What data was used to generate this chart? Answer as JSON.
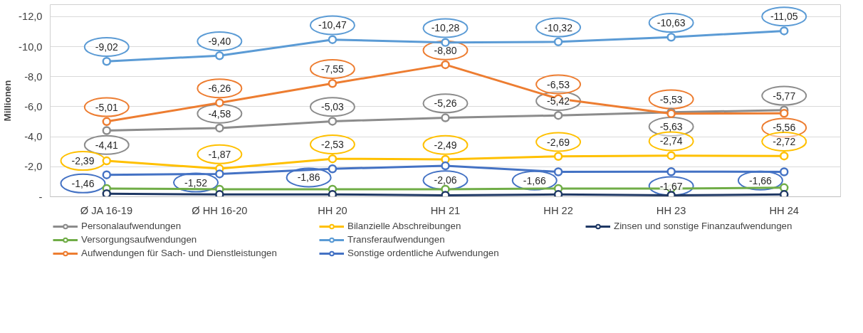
{
  "chart_data": {
    "type": "line",
    "ylabel": "Millionen",
    "categories": [
      "Ø JA 16-19",
      "Ø HH 16-20",
      "HH 20",
      "HH 21",
      "HH 22",
      "HH 23",
      "HH 24"
    ],
    "ylim": [
      0,
      -12.8
    ],
    "yticks": [
      {
        "value": 0,
        "label": "-"
      },
      {
        "value": -2,
        "label": "-2,0"
      },
      {
        "value": -4,
        "label": "-4,0"
      },
      {
        "value": -6,
        "label": "-6,0"
      },
      {
        "value": -8,
        "label": "-8,0"
      },
      {
        "value": -10,
        "label": "-10,0"
      },
      {
        "value": -12,
        "label": "-12,0"
      }
    ],
    "grid": "y",
    "legend": "bottom",
    "marker": "circle",
    "line_style": "solid",
    "series": [
      {
        "name": "Personalaufwendungen",
        "color": "#8c8c8c",
        "values": [
          -4.41,
          -4.58,
          -5.03,
          -5.26,
          -5.42,
          -5.63,
          -5.77
        ],
        "value_labels": [
          "-4,41",
          "-4,58",
          "-5,03",
          "-5,26",
          "-5,42",
          "-5,63",
          "-5,77"
        ]
      },
      {
        "name": "Versorgungsaufwendungen",
        "color": "#70ad47",
        "values": [
          -0.55,
          -0.5,
          -0.5,
          -0.5,
          -0.55,
          -0.55,
          -0.6
        ]
      },
      {
        "name": "Aufwendungen für Sach- und Dienstleistungen",
        "color": "#ed7d31",
        "values": [
          -5.01,
          -6.26,
          -7.55,
          -8.8,
          -6.53,
          -5.53,
          -5.56
        ],
        "value_labels": [
          "-5,01",
          "-6,26",
          "-7,55",
          "-8,80",
          "-6,53",
          "-5,53",
          "-5,56"
        ]
      },
      {
        "name": "Bilanzielle Abschreibungen",
        "color": "#ffc000",
        "values": [
          -2.39,
          -1.87,
          -2.53,
          -2.49,
          -2.69,
          -2.74,
          -2.72
        ],
        "value_labels": [
          "-2,39",
          "-1,87",
          "-2,53",
          "-2,49",
          "-2,69",
          "-2,74",
          "-2,72"
        ]
      },
      {
        "name": "Transferaufwendungen",
        "color": "#5b9bd5",
        "values": [
          -9.02,
          -9.4,
          -10.47,
          -10.28,
          -10.32,
          -10.63,
          -11.05
        ],
        "value_labels": [
          "-9,02",
          "-9,40",
          "-10,47",
          "-10,28",
          "-10,32",
          "-10,63",
          "-11,05"
        ]
      },
      {
        "name": "Sonstige ordentliche Aufwendungen",
        "color": "#4472c4",
        "values": [
          -1.46,
          -1.52,
          -1.86,
          -2.06,
          -1.66,
          -1.67,
          -1.66
        ],
        "value_labels": [
          "-1,46",
          "-1,52",
          "-1,86",
          "-2,06",
          "-1,66",
          "-1,67",
          "-1,66"
        ]
      },
      {
        "name": "Zinsen und sonstige Finanzaufwendungen",
        "color": "#1f3864",
        "values": [
          -0.2,
          -0.15,
          -0.15,
          -0.1,
          -0.15,
          -0.1,
          -0.15
        ]
      }
    ]
  }
}
